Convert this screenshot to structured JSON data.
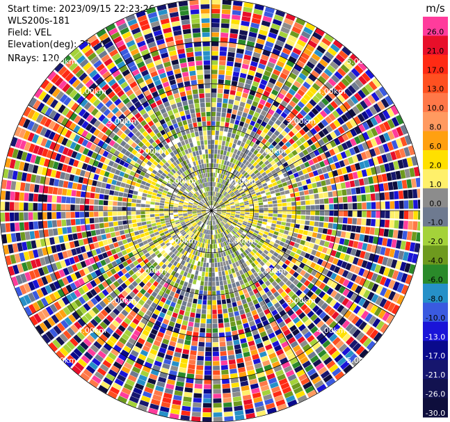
{
  "info": {
    "start_time": "Start time: 2023/09/15 22:23:26",
    "instrument": "WLS200s-181",
    "field": "Field: VEL",
    "elevation": "Elevation(deg): 35.30",
    "nrays": "NRays: 120"
  },
  "colorbar": {
    "unit": "m/s",
    "bands": [
      {
        "label": "26.0",
        "color": "#ff3c9c"
      },
      {
        "label": "21.0",
        "color": "#e80f2a"
      },
      {
        "label": "17.0",
        "color": "#ff2a14"
      },
      {
        "label": "13.0",
        "color": "#ff5020"
      },
      {
        "label": "10.0",
        "color": "#ff7848"
      },
      {
        "label": "8.0",
        "color": "#ff9a60"
      },
      {
        "label": "6.0",
        "color": "#ffa010"
      },
      {
        "label": "2.0",
        "color": "#ffe000"
      },
      {
        "label": "1.0",
        "color": "#fff06a"
      },
      {
        "label": "0.0",
        "color": "#8c8c8c"
      },
      {
        "label": "-1.0",
        "color": "#6e7a90"
      },
      {
        "label": "-2.0",
        "color": "#a4d23a"
      },
      {
        "label": "-4.0",
        "color": "#6e9a1e"
      },
      {
        "label": "-6.0",
        "color": "#2a8a2a"
      },
      {
        "label": "-8.0",
        "color": "#2690c8"
      },
      {
        "label": "-10.0",
        "color": "#3a5ae0"
      },
      {
        "label": "-13.0",
        "color": "#1a14d8"
      },
      {
        "label": "-17.0",
        "color": "#0a0a8c"
      },
      {
        "label": "-21.0",
        "color": "#16166e"
      },
      {
        "label": "-26.0",
        "color": "#121250"
      },
      {
        "label": "-30.0",
        "color": "#0e0e3c"
      }
    ]
  },
  "chart_data": {
    "type": "heatmap",
    "projection": "polar PPI",
    "field": "VEL",
    "nrays": 120,
    "range_rings_km": [
      1,
      2,
      3,
      4,
      5
    ],
    "ring_labels": [
      "1.00km",
      "2.00km",
      "3.00km",
      "4.00km",
      "5.00km"
    ],
    "max_range_km": 5,
    "grid": true,
    "pattern": "near-range dominated by 0 to +2 m/s (yellow/grey) along the west-east axis and -1 to -2 m/s (green) elsewhere; beyond ~2 km returns become noisy with values spanning the full -30 to +26 m/s scale"
  }
}
